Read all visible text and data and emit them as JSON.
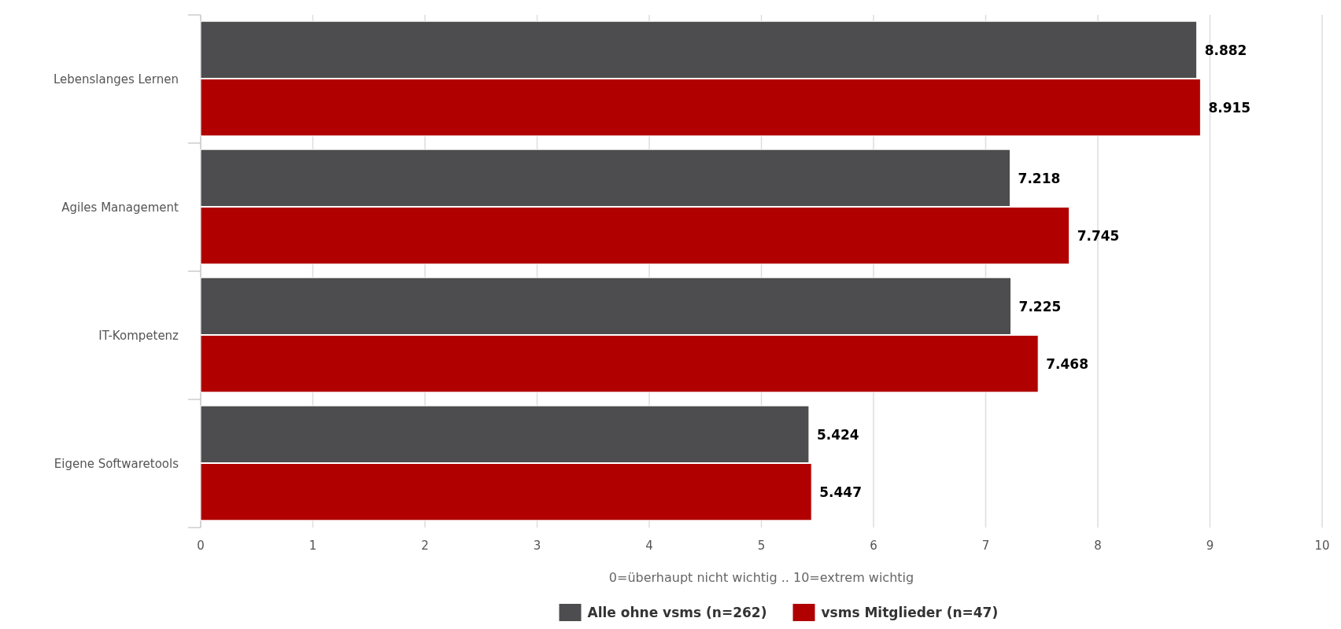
{
  "chart_data": {
    "type": "bar",
    "orientation": "horizontal",
    "categories": [
      "Lebenslanges Lernen",
      "Agiles Management",
      "IT-Kompetenz",
      "Eigene Softwaretools"
    ],
    "series": [
      {
        "name": "Alle ohne vsms (n=262)",
        "color": "#4d4d4f",
        "values": [
          8.882,
          7.218,
          7.225,
          5.424
        ]
      },
      {
        "name": "vsms Mitglieder (n=47)",
        "color": "#b00000",
        "values": [
          8.915,
          7.745,
          7.468,
          5.447
        ]
      }
    ],
    "xlim": [
      0,
      10
    ],
    "xticks": [
      0,
      1,
      2,
      3,
      4,
      5,
      6,
      7,
      8,
      9,
      10
    ],
    "xlabel": "0=überhaupt nicht wichtig .. 10=extrem wichtig",
    "grid": "x",
    "legend": "bottom",
    "data_labels": true
  }
}
